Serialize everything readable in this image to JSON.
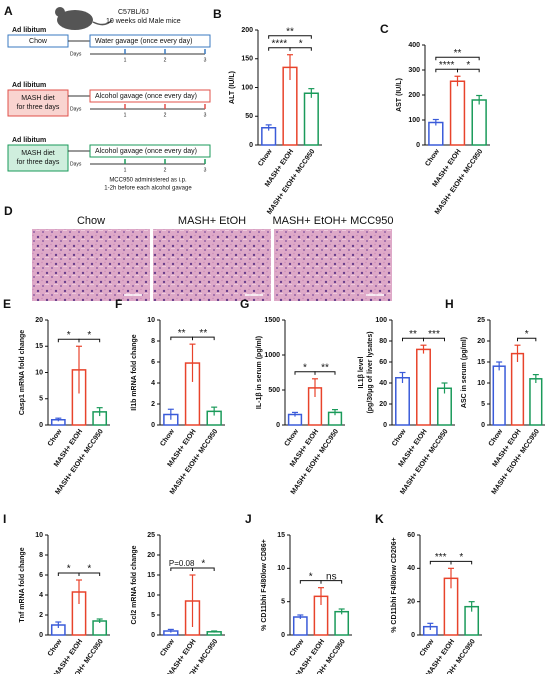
{
  "diagram": {
    "panel": "A",
    "strain": "C57BL/6J",
    "mice": "10 weeks old Male mice",
    "groups": [
      {
        "feed": "Ad libitum",
        "diet": [
          "Chow"
        ],
        "gavage": "Water gavage (once every day)",
        "days_label": "Days",
        "days": [
          "1",
          "2",
          "3"
        ]
      },
      {
        "feed": "Ad libitum",
        "diet": [
          "MASH diet",
          "for three days"
        ],
        "gavage": "Alcohol gavage (once every day)",
        "days_label": "Days",
        "days": [
          "1",
          "2",
          "3"
        ]
      },
      {
        "feed": "Ad libitum",
        "diet": [
          "MASH diet",
          "for three days"
        ],
        "gavage": "Alcohol gavage (once every day)",
        "days_label": "Days",
        "days": [
          "1",
          "2",
          "3"
        ]
      }
    ],
    "note": [
      "MCC950 administered as i.p.",
      "1-2h before each alcohol gavage"
    ]
  },
  "histology": {
    "panel": "D",
    "labels": [
      "Chow",
      "MASH+ EtOH",
      "MASH+ EtOH+ MCC950"
    ]
  },
  "chart_data": [
    {
      "type": "bar",
      "panel": "B",
      "ylabel": [
        "ALT (IU/L)"
      ],
      "categories": [
        "Chow",
        "MASH+ EtOH",
        "MASH+ EtOH+ MCC950"
      ],
      "colors": [
        "#3a5bd9",
        "#e8432b",
        "#1a9a5a"
      ],
      "values": [
        30,
        135,
        90
      ],
      "errors": [
        5,
        22,
        8
      ],
      "ylim": [
        0,
        200
      ],
      "yticks": [
        0,
        50,
        100,
        150,
        200
      ],
      "brackets": [
        {
          "label": "****",
          "pair": [
            0,
            1
          ]
        },
        {
          "label": "*",
          "pair": [
            1,
            2
          ]
        },
        {
          "label": "**",
          "pair": [
            0,
            2
          ]
        }
      ]
    },
    {
      "type": "bar",
      "panel": "C",
      "ylabel": [
        "AST (IU/L)"
      ],
      "categories": [
        "Chow",
        "MASH+ EtOH",
        "MASH+ EtOH+ MCC950"
      ],
      "colors": [
        "#3a5bd9",
        "#e8432b",
        "#1a9a5a"
      ],
      "values": [
        90,
        255,
        180
      ],
      "errors": [
        12,
        20,
        18
      ],
      "ylim": [
        0,
        400
      ],
      "yticks": [
        0,
        100,
        200,
        300,
        400
      ],
      "brackets": [
        {
          "label": "****",
          "pair": [
            0,
            1
          ]
        },
        {
          "label": "*",
          "pair": [
            1,
            2
          ]
        },
        {
          "label": "**",
          "pair": [
            0,
            2
          ]
        }
      ]
    },
    {
      "type": "bar",
      "panel": "E",
      "ylabel": [
        "Casp1 mRNA fold change"
      ],
      "categories": [
        "Chow",
        "MASH+ EtOH",
        "MASH+ EtOH+ MCC950"
      ],
      "colors": [
        "#3a5bd9",
        "#e8432b",
        "#1a9a5a"
      ],
      "values": [
        1,
        10.5,
        2.5
      ],
      "errors": [
        0.3,
        4.5,
        0.8
      ],
      "ylim": [
        0,
        20
      ],
      "yticks": [
        0,
        5,
        10,
        15,
        20
      ],
      "brackets": [
        {
          "label": "*",
          "pair": [
            0,
            1
          ]
        },
        {
          "label": "*",
          "pair": [
            1,
            2
          ]
        }
      ]
    },
    {
      "type": "bar",
      "panel": "F",
      "ylabel": [
        "Il1b mRNA fold change"
      ],
      "categories": [
        "Chow",
        "MASH+ EtOH",
        "MASH+ EtOH+ MCC950"
      ],
      "colors": [
        "#3a5bd9",
        "#e8432b",
        "#1a9a5a"
      ],
      "values": [
        1,
        5.9,
        1.3
      ],
      "errors": [
        0.5,
        1.8,
        0.4
      ],
      "ylim": [
        0,
        10
      ],
      "yticks": [
        0,
        2,
        4,
        6,
        8,
        10
      ],
      "brackets": [
        {
          "label": "**",
          "pair": [
            0,
            1
          ]
        },
        {
          "label": "**",
          "pair": [
            1,
            2
          ]
        }
      ]
    },
    {
      "type": "bar",
      "panel": "G",
      "ylabel": [
        "IL-1β in serum (pg/ml)"
      ],
      "categories": [
        "Chow",
        "MASH+ EtOH",
        "MASH+ EtOH+ MCC950"
      ],
      "colors": [
        "#3a5bd9",
        "#e8432b",
        "#1a9a5a"
      ],
      "values": [
        150,
        530,
        180
      ],
      "errors": [
        30,
        130,
        40
      ],
      "ylim": [
        0,
        1500
      ],
      "yticks": [
        0,
        500,
        1000,
        1500
      ],
      "brackets": [
        {
          "label": "*",
          "pair": [
            0,
            1
          ]
        },
        {
          "label": "**",
          "pair": [
            1,
            2
          ]
        }
      ]
    },
    {
      "type": "bar",
      "ylabel": [
        "IL1β level",
        "(pg/30μg of liver lysates)"
      ],
      "categories": [
        "Chow",
        "MASH+ EtOH",
        "MASH+ EtOH+ MCC950"
      ],
      "colors": [
        "#3a5bd9",
        "#e8432b",
        "#1a9a5a"
      ],
      "values": [
        45,
        72,
        35
      ],
      "errors": [
        5,
        4,
        5
      ],
      "ylim": [
        0,
        100
      ],
      "yticks": [
        0,
        20,
        40,
        60,
        80,
        100
      ],
      "brackets": [
        {
          "label": "**",
          "pair": [
            0,
            1
          ]
        },
        {
          "label": "***",
          "pair": [
            1,
            2
          ]
        }
      ]
    },
    {
      "type": "bar",
      "panel": "H",
      "ylabel": [
        "ASC in serum (pg/ml)"
      ],
      "categories": [
        "Chow",
        "MASH+ EtOH",
        "MASH+ EtOH+ MCC950"
      ],
      "colors": [
        "#3a5bd9",
        "#e8432b",
        "#1a9a5a"
      ],
      "values": [
        14,
        17,
        11
      ],
      "errors": [
        1,
        2,
        1
      ],
      "ylim": [
        0,
        25
      ],
      "yticks": [
        0,
        5,
        10,
        15,
        20,
        25
      ],
      "brackets": [
        {
          "label": "*",
          "pair": [
            1,
            2
          ]
        }
      ]
    },
    {
      "type": "bar",
      "panel": "I",
      "ylabel": [
        "Tnf mRNA fold change"
      ],
      "categories": [
        "Chow",
        "MASH+ EtOH",
        "MASH+ EtOH+ MCC950"
      ],
      "colors": [
        "#3a5bd9",
        "#e8432b",
        "#1a9a5a"
      ],
      "values": [
        1,
        4.3,
        1.4
      ],
      "errors": [
        0.3,
        1.2,
        0.2
      ],
      "ylim": [
        0,
        10
      ],
      "yticks": [
        0,
        2,
        4,
        6,
        8,
        10
      ],
      "brackets": [
        {
          "label": "*",
          "pair": [
            0,
            1
          ]
        },
        {
          "label": "*",
          "pair": [
            1,
            2
          ]
        }
      ]
    },
    {
      "type": "bar",
      "ylabel": [
        "Ccl2 mRNA fold change"
      ],
      "categories": [
        "Chow",
        "MASH+ EtOH",
        "MASH+ EtOH+ MCC950"
      ],
      "colors": [
        "#3a5bd9",
        "#e8432b",
        "#1a9a5a"
      ],
      "values": [
        1,
        8.5,
        0.8
      ],
      "errors": [
        0.4,
        6.5,
        0.2
      ],
      "ylim": [
        0,
        25
      ],
      "yticks": [
        0,
        5,
        10,
        15,
        20,
        25
      ],
      "brackets": [
        {
          "label": "P=0.08",
          "pair": [
            0,
            1
          ]
        },
        {
          "label": "*",
          "pair": [
            1,
            2
          ]
        }
      ]
    },
    {
      "type": "bar",
      "panel": "J",
      "ylabel": [
        "% CD11bhi F4/80low CD86+"
      ],
      "categories": [
        "Chow",
        "MASH+ EtOH",
        "MASH+ EtOH+ MCC950"
      ],
      "colors": [
        "#3a5bd9",
        "#e8432b",
        "#1a9a5a"
      ],
      "values": [
        2.7,
        5.8,
        3.5
      ],
      "errors": [
        0.3,
        1.3,
        0.4
      ],
      "ylim": [
        0,
        15
      ],
      "yticks": [
        0,
        5,
        10,
        15
      ],
      "brackets": [
        {
          "label": "*",
          "pair": [
            0,
            1
          ]
        },
        {
          "label": "ns",
          "pair": [
            1,
            2
          ]
        }
      ]
    },
    {
      "type": "bar",
      "panel": "K",
      "ylabel": [
        "% CD11bhi F4/80low CD206+"
      ],
      "categories": [
        "Chow",
        "MASH+ EtOH",
        "MASH+ EtOH+ MCC950"
      ],
      "colors": [
        "#3a5bd9",
        "#e8432b",
        "#1a9a5a"
      ],
      "values": [
        5,
        34,
        17
      ],
      "errors": [
        2,
        6,
        3
      ],
      "ylim": [
        0,
        60
      ],
      "yticks": [
        0,
        20,
        40,
        60
      ],
      "brackets": [
        {
          "label": "***",
          "pair": [
            0,
            1
          ]
        },
        {
          "label": "*",
          "pair": [
            1,
            2
          ]
        }
      ]
    }
  ]
}
